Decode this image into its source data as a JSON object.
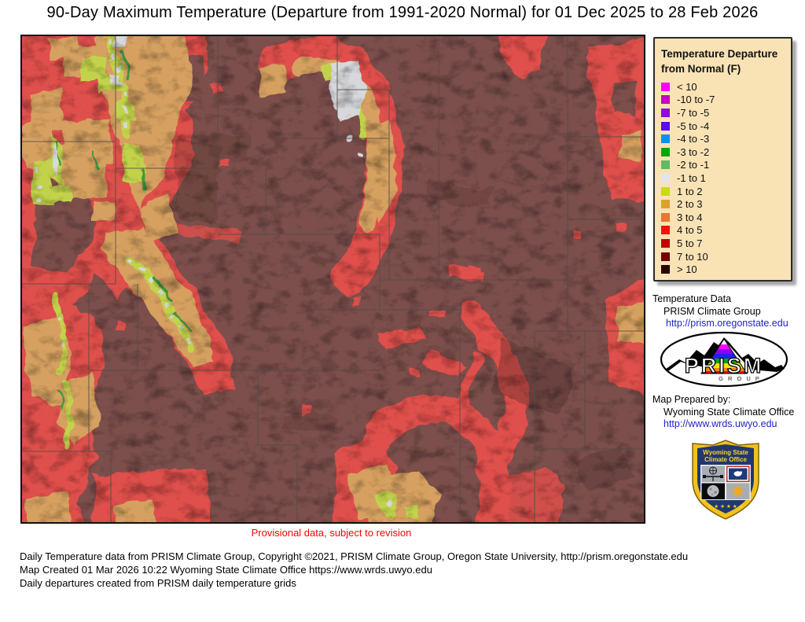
{
  "title": "90-Day Maximum Temperature (Departure from 1991-2020 Normal) for 01 Dec 2025 to 28 Feb 2026",
  "legend": {
    "title_line1": "Temperature Departure",
    "title_line2": "from Normal (F)",
    "panel_bg": "#F9E3B5",
    "items": [
      {
        "label": "< 10",
        "color": "#FF00FF"
      },
      {
        "label": "-10 to -7",
        "color": "#C400C4"
      },
      {
        "label": "-7 to -5",
        "color": "#8F0DD6"
      },
      {
        "label": "-5 to -4",
        "color": "#5B0BF0"
      },
      {
        "label": "-4 to -3",
        "color": "#0D8FF2"
      },
      {
        "label": "-3 to -2",
        "color": "#0AA50A"
      },
      {
        "label": "-2 to -1",
        "color": "#62BB62"
      },
      {
        "label": "-1 to 1",
        "color": "#E4E4EC"
      },
      {
        "label": "1 to 2",
        "color": "#C8DC0F"
      },
      {
        "label": "2 to 3",
        "color": "#DBA32E"
      },
      {
        "label": "3 to 4",
        "color": "#E87830"
      },
      {
        "label": "4 to 5",
        "color": "#F5100C"
      },
      {
        "label": "5 to 7",
        "color": "#BF0404"
      },
      {
        "label": "7 to 10",
        "color": "#730303"
      },
      {
        "label": "> 10",
        "color": "#2B0101"
      }
    ]
  },
  "sidebar": {
    "temperature_data": {
      "heading": "Temperature Data",
      "source": "PRISM Climate Group",
      "link": "http://prism.oregonstate.edu"
    },
    "prism_logo": {
      "text": "PRISM",
      "subtext": "G R O U P"
    },
    "map_prepared": {
      "heading": "Map Prepared by:",
      "org": "Wyoming State Climate Office",
      "link": "http://www.wrds.uwyo.edu"
    },
    "shield": {
      "line1": "Wyoming State",
      "line2": "Climate Office",
      "stars": "★ ★ ★ ★ ★ ★"
    }
  },
  "map": {
    "provisional_note": "Provisional data, subject to revision",
    "note_color": "#FF0000",
    "base_color": "#7C4F4C"
  },
  "footer": {
    "lines": [
      "Daily Temperature data from PRISM Climate Group, Copyright ©2021, PRISM Climate Group, Oregon State University, http://prism.oregonstate.edu",
      "Map Created 01 Mar 2026 10:22 Wyoming State Climate Office https://www.wrds.uwyo.edu",
      "Daily departures created from PRISM daily temperature grids"
    ]
  }
}
